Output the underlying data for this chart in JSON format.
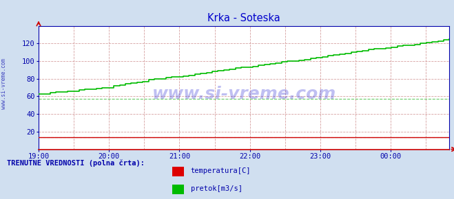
{
  "title": "Krka - Soteska",
  "title_color": "#0000cc",
  "bg_color": "#d0dff0",
  "plot_bg_color": "#ffffff",
  "xlabel_color": "#0000aa",
  "ylabel_color": "#0000aa",
  "x_tick_labels": [
    "19:00",
    "20:00",
    "21:00",
    "22:00",
    "23:00",
    "00:00"
  ],
  "x_tick_positions": [
    0,
    60,
    120,
    180,
    240,
    300
  ],
  "xlim": [
    0,
    350
  ],
  "ylim": [
    0,
    140
  ],
  "y_tick_positions": [
    20,
    40,
    60,
    80,
    100,
    120
  ],
  "watermark": "www.si-vreme.com",
  "watermark_color": "#0000cc",
  "watermark_alpha": 0.25,
  "side_label": "www.si-vreme.com",
  "legend_title": "TRENUTNE VREDNOSTI (polna črta):",
  "legend_title_color": "#0000aa",
  "legend_entries": [
    "temperatura[C]",
    "pretok[m3/s]"
  ],
  "legend_colors": [
    "#dd0000",
    "#00bb00"
  ],
  "temperature_color": "#cc0000",
  "flow_color": "#00bb00",
  "temp_dashed_color": "#cc0000",
  "flow_dashed_color": "#00aa00",
  "temp_values": [
    14,
    14,
    14,
    14,
    14,
    14,
    14,
    14,
    14,
    14,
    14,
    14,
    14,
    14,
    14,
    14,
    14,
    14,
    14,
    14,
    14,
    14,
    14,
    14,
    14,
    14,
    14,
    14,
    14,
    14,
    14,
    14,
    14,
    14,
    14,
    14,
    14,
    14,
    14,
    14,
    14,
    14,
    14,
    14,
    14,
    14,
    14,
    14,
    14,
    14,
    14,
    14,
    14,
    14,
    14,
    14,
    14,
    14,
    14,
    14,
    14,
    14,
    14,
    14,
    14,
    14,
    14,
    14,
    14,
    14,
    14,
    14
  ],
  "flow_values": [
    63,
    63,
    64,
    65,
    65,
    66,
    66,
    67,
    68,
    68,
    69,
    70,
    70,
    72,
    73,
    74,
    75,
    76,
    77,
    79,
    80,
    80,
    81,
    82,
    82,
    83,
    84,
    85,
    86,
    87,
    88,
    89,
    90,
    91,
    92,
    93,
    93,
    94,
    95,
    96,
    97,
    98,
    99,
    100,
    100,
    101,
    102,
    103,
    104,
    105,
    106,
    107,
    108,
    109,
    110,
    111,
    112,
    113,
    114,
    114,
    115,
    116,
    117,
    118,
    118,
    119,
    120,
    121,
    122,
    123,
    124,
    125
  ],
  "n_points": 72,
  "avg_temp": 14,
  "avg_flow": 57
}
